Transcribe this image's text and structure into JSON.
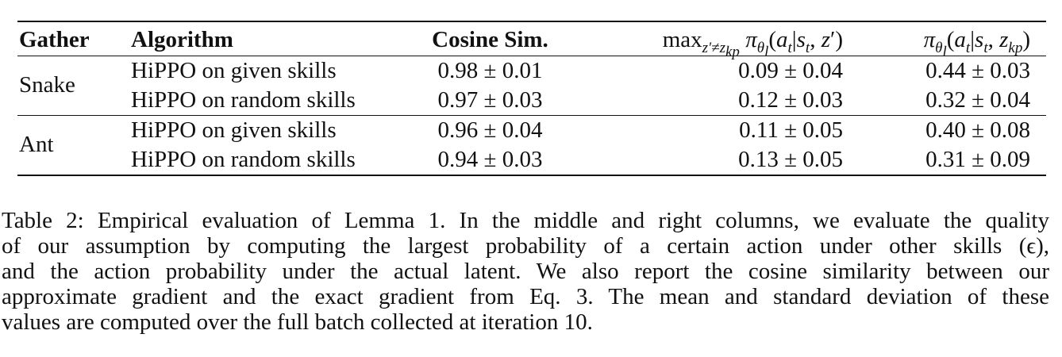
{
  "table": {
    "headers": {
      "gather": "Gather",
      "algorithm": "Algorithm",
      "cosine": "Cosine Sim.",
      "max_prob": "max_{z′≠z_kp} π_θl(a_t|s_t, z′)",
      "actual_prob": "π_θl(a_t|s_t, z_kp)"
    },
    "groups": [
      {
        "gather": "Snake",
        "rows": [
          {
            "algorithm": "HiPPO on given skills",
            "cosine": "0.98 ± 0.01",
            "max_prob": "0.09 ± 0.04",
            "actual_prob": "0.44 ± 0.03"
          },
          {
            "algorithm": "HiPPO on random skills",
            "cosine": "0.97 ± 0.03",
            "max_prob": "0.12 ± 0.03",
            "actual_prob": "0.32 ± 0.04"
          }
        ]
      },
      {
        "gather": "Ant",
        "rows": [
          {
            "algorithm": "HiPPO on given skills",
            "cosine": "0.96 ± 0.04",
            "max_prob": "0.11 ± 0.05",
            "actual_prob": "0.40 ± 0.08"
          },
          {
            "algorithm": "HiPPO on random skills",
            "cosine": "0.94 ± 0.03",
            "max_prob": "0.13 ± 0.05",
            "actual_prob": "0.31 ± 0.09"
          }
        ]
      }
    ]
  },
  "caption": {
    "lines": [
      "Table 2: Empirical evaluation of Lemma 1. In the middle and right columns, we evaluate the quality",
      "of our assumption by computing the largest probability of a certain action under other skills (ϵ),",
      "and the action probability under the actual latent. We also report the cosine similarity between our",
      "approximate gradient and the exact gradient from Eq. 3. The mean and standard deviation of these",
      "values are computed over the full batch collected at iteration 10."
    ]
  }
}
